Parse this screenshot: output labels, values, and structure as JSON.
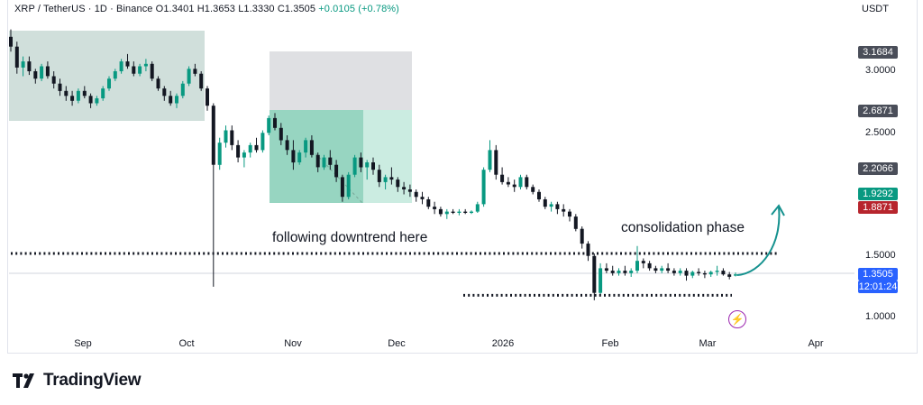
{
  "header": {
    "symbol": "XRP / TetherUS · 1D · Binance",
    "open": "O1.3401",
    "high": "H1.3653",
    "low": "L1.3330",
    "close": "C1.3505",
    "change": "+0.0105 (+0.78%)",
    "currency": "USDT"
  },
  "price_axis": {
    "ticks": [
      "3.0000",
      "2.5000",
      "1.5000",
      "1.0000"
    ],
    "tags": [
      {
        "label": "3.1684",
        "color": "#4a4e59"
      },
      {
        "label": "2.6871",
        "color": "#4a4e59"
      },
      {
        "label": "2.2066",
        "color": "#4a4e59"
      },
      {
        "label": "1.9292",
        "color": "#089981"
      },
      {
        "label": "1.8871",
        "color": "#b7252d"
      }
    ],
    "last_price": {
      "label": "1.3505",
      "countdown": "12:01:24",
      "color": "#2962ff"
    }
  },
  "time_axis": [
    "Sep",
    "Oct",
    "Nov",
    "Dec",
    "2026",
    "Feb",
    "Mar",
    "Apr"
  ],
  "annotations": {
    "downtrend": "following downtrend here",
    "consolidation": "consolidation phase"
  },
  "branding": {
    "name": "TradingView"
  },
  "icons": {
    "alert": "lightning-icon",
    "logo": "tradingview-logo-icon"
  },
  "colors": {
    "up": "#089981",
    "down": "#131722",
    "accent": "#2962ff"
  },
  "chart_data": {
    "type": "candlestick",
    "xlabel": "",
    "ylabel": "",
    "ylim": [
      0.9,
      3.4
    ],
    "x_range": [
      "2025-08-20",
      "2026-04-08"
    ],
    "levels": {
      "resistance_dotted": 1.52,
      "support_dotted": 1.18
    },
    "series": [
      {
        "values": [
          [
            3.28,
            3.34,
            3.16,
            3.2
          ],
          [
            3.2,
            3.24,
            2.98,
            3.03
          ],
          [
            3.03,
            3.12,
            2.96,
            3.08
          ],
          [
            3.08,
            3.12,
            2.97,
            3.0
          ],
          [
            3.0,
            3.02,
            2.9,
            2.94
          ],
          [
            2.94,
            3.06,
            2.92,
            3.04
          ],
          [
            3.04,
            3.08,
            2.94,
            2.96
          ],
          [
            2.96,
            3.0,
            2.86,
            2.9
          ],
          [
            2.9,
            2.94,
            2.8,
            2.84
          ],
          [
            2.84,
            2.88,
            2.76,
            2.8
          ],
          [
            2.8,
            2.84,
            2.72,
            2.76
          ],
          [
            2.76,
            2.86,
            2.74,
            2.84
          ],
          [
            2.84,
            2.88,
            2.78,
            2.8
          ],
          [
            2.8,
            2.82,
            2.7,
            2.74
          ],
          [
            2.74,
            2.8,
            2.72,
            2.78
          ],
          [
            2.78,
            2.88,
            2.76,
            2.86
          ],
          [
            2.86,
            2.96,
            2.84,
            2.94
          ],
          [
            2.94,
            3.02,
            2.92,
            3.0
          ],
          [
            3.0,
            3.1,
            2.98,
            3.08
          ],
          [
            3.08,
            3.14,
            3.02,
            3.04
          ],
          [
            3.04,
            3.08,
            2.96,
            2.98
          ],
          [
            2.98,
            3.06,
            2.96,
            3.04
          ],
          [
            3.04,
            3.1,
            3.0,
            3.06
          ],
          [
            3.06,
            3.08,
            2.92,
            2.94
          ],
          [
            2.94,
            2.96,
            2.84,
            2.86
          ],
          [
            2.86,
            2.88,
            2.76,
            2.8
          ],
          [
            2.8,
            2.84,
            2.72,
            2.74
          ],
          [
            2.74,
            2.82,
            2.7,
            2.8
          ],
          [
            2.8,
            2.92,
            2.78,
            2.9
          ],
          [
            2.9,
            3.04,
            2.88,
            3.02
          ],
          [
            3.02,
            3.06,
            2.96,
            2.98
          ],
          [
            2.98,
            3.0,
            2.84,
            2.86
          ],
          [
            2.86,
            2.88,
            2.68,
            2.72
          ],
          [
            2.72,
            2.74,
            1.25,
            2.24
          ],
          [
            2.24,
            2.46,
            2.2,
            2.42
          ],
          [
            2.42,
            2.56,
            2.38,
            2.52
          ],
          [
            2.52,
            2.56,
            2.36,
            2.4
          ],
          [
            2.4,
            2.44,
            2.26,
            2.3
          ],
          [
            2.3,
            2.36,
            2.22,
            2.34
          ],
          [
            2.34,
            2.42,
            2.3,
            2.4
          ],
          [
            2.4,
            2.46,
            2.34,
            2.36
          ],
          [
            2.36,
            2.52,
            2.34,
            2.5
          ],
          [
            2.5,
            2.64,
            2.48,
            2.62
          ],
          [
            2.62,
            2.66,
            2.52,
            2.54
          ],
          [
            2.54,
            2.58,
            2.4,
            2.44
          ],
          [
            2.44,
            2.48,
            2.32,
            2.36
          ],
          [
            2.36,
            2.44,
            2.2,
            2.26
          ],
          [
            2.26,
            2.36,
            2.24,
            2.34
          ],
          [
            2.34,
            2.46,
            2.3,
            2.44
          ],
          [
            2.44,
            2.48,
            2.3,
            2.32
          ],
          [
            2.32,
            2.34,
            2.18,
            2.22
          ],
          [
            2.22,
            2.32,
            2.2,
            2.3
          ],
          [
            2.3,
            2.36,
            2.2,
            2.24
          ],
          [
            2.24,
            2.28,
            2.1,
            2.14
          ],
          [
            2.14,
            2.16,
            1.94,
            1.98
          ],
          [
            1.98,
            2.18,
            1.96,
            2.16
          ],
          [
            2.16,
            2.32,
            2.14,
            2.3
          ],
          [
            2.3,
            2.34,
            2.18,
            2.22
          ],
          [
            2.22,
            2.28,
            2.12,
            2.26
          ],
          [
            2.26,
            2.3,
            2.16,
            2.2
          ],
          [
            2.2,
            2.24,
            2.06,
            2.1
          ],
          [
            2.1,
            2.16,
            2.04,
            2.14
          ],
          [
            2.14,
            2.22,
            2.08,
            2.12
          ],
          [
            2.12,
            2.14,
            2.02,
            2.06
          ],
          [
            2.06,
            2.1,
            2.0,
            2.04
          ],
          [
            2.04,
            2.08,
            1.98,
            2.02
          ],
          [
            2.02,
            2.04,
            1.94,
            1.98
          ],
          [
            1.98,
            2.02,
            1.92,
            1.96
          ],
          [
            1.96,
            1.98,
            1.88,
            1.9
          ],
          [
            1.9,
            1.94,
            1.84,
            1.88
          ],
          [
            1.88,
            1.9,
            1.82,
            1.84
          ],
          [
            1.84,
            1.88,
            1.8,
            1.86
          ],
          [
            1.86,
            1.88,
            1.84,
            1.85
          ],
          [
            1.85,
            1.88,
            1.83,
            1.86
          ],
          [
            1.86,
            1.88,
            1.84,
            1.85
          ],
          [
            1.85,
            1.87,
            1.84,
            1.86
          ],
          [
            1.86,
            1.94,
            1.85,
            1.92
          ],
          [
            1.92,
            2.22,
            1.9,
            2.2
          ],
          [
            2.2,
            2.44,
            2.18,
            2.36
          ],
          [
            2.36,
            2.4,
            2.12,
            2.16
          ],
          [
            2.16,
            2.22,
            2.08,
            2.1
          ],
          [
            2.1,
            2.14,
            2.06,
            2.08
          ],
          [
            2.08,
            2.12,
            2.02,
            2.06
          ],
          [
            2.06,
            2.16,
            2.04,
            2.14
          ],
          [
            2.14,
            2.16,
            2.04,
            2.06
          ],
          [
            2.06,
            2.08,
            2.0,
            2.02
          ],
          [
            2.02,
            2.04,
            1.94,
            1.96
          ],
          [
            1.96,
            1.98,
            1.88,
            1.9
          ],
          [
            1.9,
            1.94,
            1.86,
            1.92
          ],
          [
            1.92,
            1.94,
            1.84,
            1.88
          ],
          [
            1.88,
            1.92,
            1.82,
            1.86
          ],
          [
            1.86,
            1.88,
            1.78,
            1.82
          ],
          [
            1.82,
            1.84,
            1.7,
            1.72
          ],
          [
            1.72,
            1.74,
            1.56,
            1.6
          ],
          [
            1.6,
            1.62,
            1.46,
            1.5
          ],
          [
            1.5,
            1.52,
            1.14,
            1.2
          ],
          [
            1.2,
            1.44,
            1.18,
            1.4
          ],
          [
            1.4,
            1.44,
            1.36,
            1.38
          ],
          [
            1.38,
            1.42,
            1.34,
            1.36
          ],
          [
            1.36,
            1.4,
            1.34,
            1.38
          ],
          [
            1.38,
            1.42,
            1.34,
            1.36
          ],
          [
            1.36,
            1.4,
            1.33,
            1.38
          ],
          [
            1.38,
            1.58,
            1.36,
            1.46
          ],
          [
            1.46,
            1.48,
            1.4,
            1.44
          ],
          [
            1.44,
            1.46,
            1.38,
            1.4
          ],
          [
            1.4,
            1.42,
            1.36,
            1.38
          ],
          [
            1.38,
            1.42,
            1.36,
            1.4
          ],
          [
            1.4,
            1.44,
            1.36,
            1.38
          ],
          [
            1.38,
            1.4,
            1.34,
            1.36
          ],
          [
            1.36,
            1.4,
            1.34,
            1.38
          ],
          [
            1.38,
            1.4,
            1.3,
            1.34
          ],
          [
            1.34,
            1.38,
            1.32,
            1.37
          ],
          [
            1.37,
            1.4,
            1.34,
            1.36
          ],
          [
            1.36,
            1.38,
            1.32,
            1.35
          ],
          [
            1.35,
            1.38,
            1.33,
            1.37
          ],
          [
            1.37,
            1.42,
            1.34,
            1.38
          ],
          [
            1.38,
            1.4,
            1.34,
            1.35
          ],
          [
            1.35,
            1.37,
            1.31,
            1.33
          ],
          [
            1.3401,
            1.3653,
            1.333,
            1.3505
          ]
        ]
      }
    ]
  }
}
